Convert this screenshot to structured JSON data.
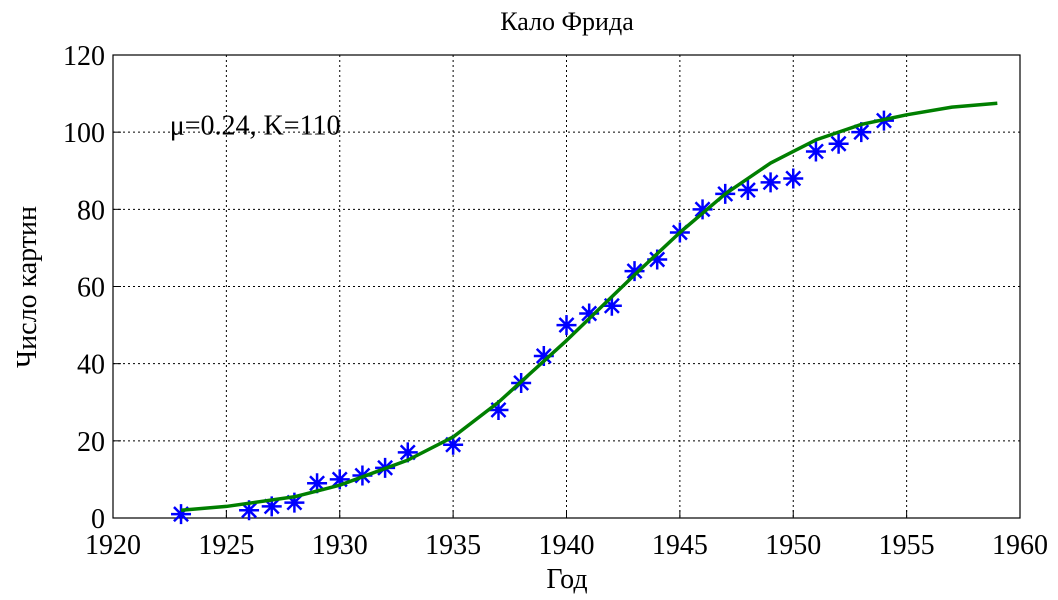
{
  "chart_data": {
    "type": "line",
    "title": "Кало Фрида",
    "xlabel": "Год",
    "ylabel": "Число картин",
    "annotation": {
      "text": "μ=0.24, K=110",
      "x": 1922.5,
      "y": 102
    },
    "xlim": [
      1920,
      1960
    ],
    "xticks": [
      1920,
      1925,
      1930,
      1935,
      1940,
      1945,
      1950,
      1955,
      1960
    ],
    "ylim": [
      0,
      120
    ],
    "yticks": [
      0,
      20,
      40,
      60,
      80,
      100,
      120
    ],
    "grid": true,
    "series": [
      {
        "marker": "asterisk",
        "color": "#0000ff",
        "x": [
          1923,
          1926,
          1927,
          1928,
          1929,
          1930,
          1931,
          1932,
          1933,
          1935,
          1937,
          1938,
          1939,
          1940,
          1941,
          1942,
          1943,
          1944,
          1945,
          1946,
          1947,
          1948,
          1949,
          1950,
          1951,
          1952,
          1953,
          1954
        ],
        "values": [
          1,
          2,
          3,
          4,
          9,
          10,
          11,
          13,
          17,
          19,
          28,
          35,
          42,
          50,
          53,
          55,
          64,
          67,
          74,
          80,
          84,
          85,
          87,
          88,
          95,
          97,
          100,
          103
        ]
      },
      {
        "marker": "none",
        "color": "#007f00",
        "x": [
          1923,
          1925,
          1928,
          1930,
          1933,
          1935,
          1937,
          1940,
          1943,
          1945,
          1947,
          1949,
          1950,
          1951,
          1953,
          1955,
          1957,
          1959
        ],
        "values": [
          2,
          3,
          5.5,
          8.5,
          15,
          21,
          30,
          46,
          63,
          74,
          84,
          92,
          95,
          98,
          102,
          104.5,
          106.5,
          107.5
        ]
      }
    ]
  }
}
